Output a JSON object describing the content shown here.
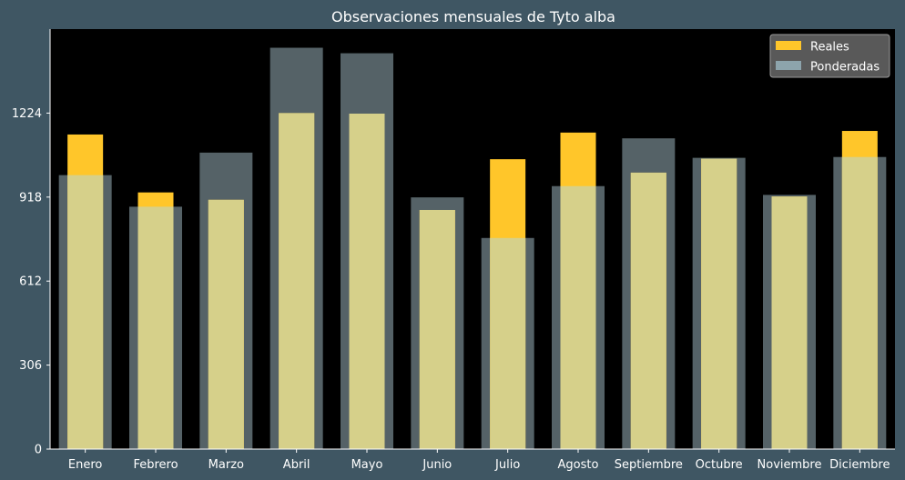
{
  "chart_data": {
    "type": "bar",
    "title": "Observaciones mensuales de Tyto alba",
    "xlabel": "",
    "ylabel": "",
    "categories": [
      "Enero",
      "Febrero",
      "Marzo",
      "Abril",
      "Mayo",
      "Junio",
      "Julio",
      "Agosto",
      "Septiembre",
      "Octubre",
      "Noviembre",
      "Diciembre"
    ],
    "series": [
      {
        "name": "Reales",
        "color": "#ffc62a",
        "values": [
          1146,
          935,
          908,
          1224,
          1222,
          871,
          1056,
          1153,
          1007,
          1058,
          920,
          1159
        ]
      },
      {
        "name": "Ponderadas",
        "color": "#8da4ac",
        "values": [
          998,
          883,
          1080,
          1462,
          1442,
          917,
          769,
          958,
          1132,
          1061,
          926,
          1064
        ]
      }
    ],
    "yticks": [
      0,
      306,
      612,
      918,
      1224
    ],
    "ylim": [
      0,
      1530
    ],
    "grid": false,
    "legend_position": "top-right",
    "colors": {
      "figure_background": "#3f5663",
      "plot_background": "#000000",
      "text": "#ffffff",
      "overlap": "#d6d08a"
    }
  }
}
